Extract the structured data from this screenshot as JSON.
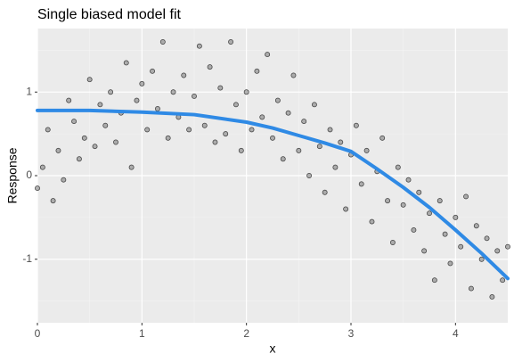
{
  "chart_data": {
    "type": "scatter",
    "title": "Single biased model fit",
    "xlabel": "x",
    "ylabel": "Response",
    "xlim": [
      0,
      4.5
    ],
    "ylim": [
      -1.76,
      1.76
    ],
    "xticks": [
      0,
      1,
      2,
      3,
      4
    ],
    "yticks": [
      -1,
      0,
      1
    ],
    "x_minor_ticks": [
      0.5,
      1.5,
      2.5,
      3.5
    ],
    "y_minor_ticks": [
      -1.5,
      -0.5,
      0.5,
      1.5
    ],
    "grid": true,
    "points": {
      "color": "#808080",
      "x": [
        0.0,
        0.05,
        0.1,
        0.15,
        0.2,
        0.25,
        0.3,
        0.35,
        0.4,
        0.45,
        0.5,
        0.55,
        0.6,
        0.65,
        0.7,
        0.75,
        0.8,
        0.85,
        0.9,
        0.95,
        1.0,
        1.05,
        1.1,
        1.15,
        1.2,
        1.25,
        1.3,
        1.35,
        1.4,
        1.45,
        1.5,
        1.55,
        1.6,
        1.65,
        1.7,
        1.75,
        1.8,
        1.85,
        1.9,
        1.95,
        2.0,
        2.05,
        2.1,
        2.15,
        2.2,
        2.25,
        2.3,
        2.35,
        2.4,
        2.45,
        2.5,
        2.55,
        2.6,
        2.65,
        2.7,
        2.75,
        2.8,
        2.85,
        2.9,
        2.95,
        3.0,
        3.05,
        3.1,
        3.15,
        3.2,
        3.25,
        3.3,
        3.35,
        3.4,
        3.45,
        3.5,
        3.55,
        3.6,
        3.65,
        3.7,
        3.75,
        3.8,
        3.85,
        3.9,
        3.95,
        4.0,
        4.05,
        4.1,
        4.15,
        4.2,
        4.25,
        4.3,
        4.35,
        4.4,
        4.45,
        4.5
      ],
      "y": [
        -0.15,
        0.1,
        0.55,
        -0.3,
        0.3,
        -0.05,
        0.9,
        0.65,
        0.2,
        0.45,
        1.15,
        0.35,
        0.85,
        0.6,
        1.0,
        0.4,
        0.75,
        1.35,
        0.1,
        0.9,
        1.1,
        0.55,
        1.25,
        0.8,
        1.6,
        0.45,
        1.0,
        0.7,
        1.2,
        0.55,
        0.95,
        1.55,
        0.6,
        1.3,
        0.4,
        1.05,
        0.5,
        1.6,
        0.85,
        0.3,
        1.0,
        0.55,
        1.25,
        0.7,
        1.45,
        0.45,
        0.9,
        0.2,
        0.75,
        1.2,
        0.3,
        0.65,
        0.0,
        0.85,
        0.35,
        -0.2,
        0.55,
        0.1,
        0.4,
        -0.4,
        0.25,
        0.6,
        -0.1,
        0.3,
        -0.55,
        0.05,
        0.45,
        -0.3,
        -0.8,
        0.1,
        -0.35,
        -0.05,
        -0.65,
        -0.2,
        -0.9,
        -0.45,
        -1.25,
        -0.3,
        -0.7,
        -1.05,
        -0.5,
        -0.85,
        -0.25,
        -1.35,
        -0.6,
        -1.0,
        -0.75,
        -1.45,
        -0.9,
        -1.25,
        -0.85
      ]
    },
    "fit": {
      "color": "#2f8ae5",
      "x": [
        0,
        0.5,
        1,
        1.5,
        2,
        2.25,
        2.5,
        2.75,
        3,
        3.25,
        3.5,
        3.75,
        4,
        4.25,
        4.5
      ],
      "y": [
        0.78,
        0.78,
        0.76,
        0.73,
        0.64,
        0.57,
        0.48,
        0.39,
        0.29,
        0.08,
        -0.14,
        -0.38,
        -0.65,
        -0.93,
        -1.23
      ]
    }
  }
}
